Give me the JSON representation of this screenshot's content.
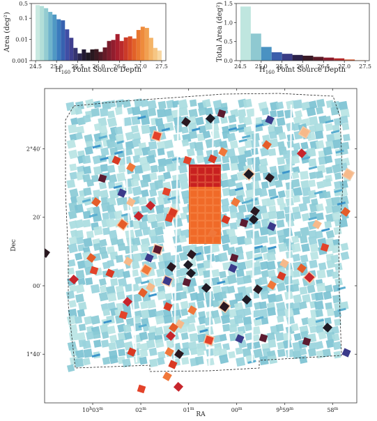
{
  "chart_data": [
    {
      "type": "bar",
      "ylog": true,
      "xlabel_main": "H",
      "xlabel_sub": "160",
      "xlabel_rest": " Point Source Depth",
      "ylabel": "Area (deg²)",
      "xlim": [
        24.4,
        27.6
      ],
      "ylim": [
        0.001,
        0.5
      ],
      "xticks": [
        24.5,
        25.0,
        25.5,
        26.0,
        26.5,
        27.0,
        27.5
      ],
      "xtick_labels": [
        "24.5",
        "25.0",
        "25.5",
        "26.0",
        "26.5",
        "27.0",
        "27.5"
      ],
      "yticks": [
        0.001,
        0.01,
        0.1,
        0.5
      ],
      "ytick_labels": [
        "0.001",
        "0.01",
        "0.1",
        "0.5"
      ],
      "bin_width": 0.1,
      "bins": [
        24.5,
        24.6,
        24.7,
        24.8,
        24.9,
        25.0,
        25.1,
        25.2,
        25.3,
        25.4,
        25.5,
        25.6,
        25.7,
        25.8,
        25.9,
        26.0,
        26.1,
        26.2,
        26.3,
        26.4,
        26.5,
        26.6,
        26.7,
        26.8,
        26.9,
        27.0,
        27.1,
        27.2,
        27.3,
        27.4
      ],
      "values": [
        0.42,
        0.38,
        0.3,
        0.2,
        0.15,
        0.09,
        0.08,
        0.03,
        0.012,
        0.004,
        0.0022,
        0.0034,
        0.0024,
        0.0034,
        0.0035,
        0.0026,
        0.0042,
        0.0085,
        0.0095,
        0.018,
        0.0085,
        0.0125,
        0.014,
        0.011,
        0.028,
        0.04,
        0.035,
        0.012,
        0.004,
        0.003
      ],
      "colors": [
        "#c9e9e1",
        "#b2ded8",
        "#93ccd1",
        "#6fb4cc",
        "#4f98c4",
        "#3b7bbd",
        "#3762b0",
        "#3f4ea5",
        "#3f3f8f",
        "#363470",
        "#2c2750",
        "#221a33",
        "#1f1924",
        "#2a1820",
        "#3c1a22",
        "#501a26",
        "#661b28",
        "#7c1c2c",
        "#921d2e",
        "#a81f2e",
        "#bb2a2b",
        "#cb3a28",
        "#d84c26",
        "#e26128",
        "#e8762f",
        "#ee8b3c",
        "#f1a050",
        "#f4b468",
        "#f6c683",
        "#f8d7a2"
      ]
    },
    {
      "type": "bar",
      "ylog": false,
      "xlabel_main": "H",
      "xlabel_sub": "160",
      "xlabel_rest": " Point Source Depth",
      "ylabel": "Total Area (deg²)",
      "xlim": [
        24.4,
        27.6
      ],
      "ylim": [
        0,
        1.5
      ],
      "xticks": [
        24.5,
        25.0,
        25.5,
        26.0,
        26.5,
        27.0,
        27.5
      ],
      "xtick_labels": [
        "24.5",
        "25.0",
        "25.5",
        "26.0",
        "26.5",
        "27.0",
        "27.5"
      ],
      "yticks": [
        0,
        0.5,
        1.0,
        1.5
      ],
      "ytick_labels": [
        "0.0",
        "0.5",
        "1.0",
        "1.5"
      ],
      "bin_width": 0.25,
      "bins": [
        24.5,
        24.75,
        25.0,
        25.25,
        25.5,
        25.75,
        26.0,
        26.25,
        26.5,
        26.75,
        27.0,
        27.25
      ],
      "values": [
        1.42,
        0.71,
        0.36,
        0.22,
        0.18,
        0.15,
        0.13,
        0.1,
        0.08,
        0.06,
        0.03,
        0.01
      ],
      "colors": [
        "#bfe6df",
        "#8fc9d1",
        "#4a92c2",
        "#3b5fab",
        "#3a3c86",
        "#2c2149",
        "#3a1a26",
        "#5d1b28",
        "#8c1d2d",
        "#b72a2b",
        "#d8562a",
        "#ee8b3c"
      ]
    },
    {
      "type": "scatter",
      "xlabel": "RA",
      "ylabel": "Dec",
      "xtick_main": [
        "10",
        "02",
        "01",
        "00",
        "9",
        "58"
      ],
      "xtick_extra": [
        "03",
        "",
        "",
        "",
        "59",
        ""
      ],
      "xtick_mid": [
        "h",
        "",
        "",
        "",
        "h",
        ""
      ],
      "xtick_sup": [
        "m",
        "m",
        "m",
        "m",
        "m",
        "m"
      ],
      "xtick_pos": [
        10.05,
        10.0333,
        10.0167,
        10.0,
        9.9833,
        9.9667
      ],
      "ytick_main": [
        "2°40′",
        "20′",
        "00′",
        "1°40′"
      ],
      "ytick_pos": [
        2.6667,
        2.3333,
        2.0,
        1.6667
      ],
      "xlim": [
        10.0667,
        9.9583
      ],
      "ylim": [
        1.43,
        2.96
      ],
      "footprint_color": "#9fd6dc",
      "deep_region_color": "#f06a28",
      "deep_region_top_color": "#c82020"
    }
  ]
}
